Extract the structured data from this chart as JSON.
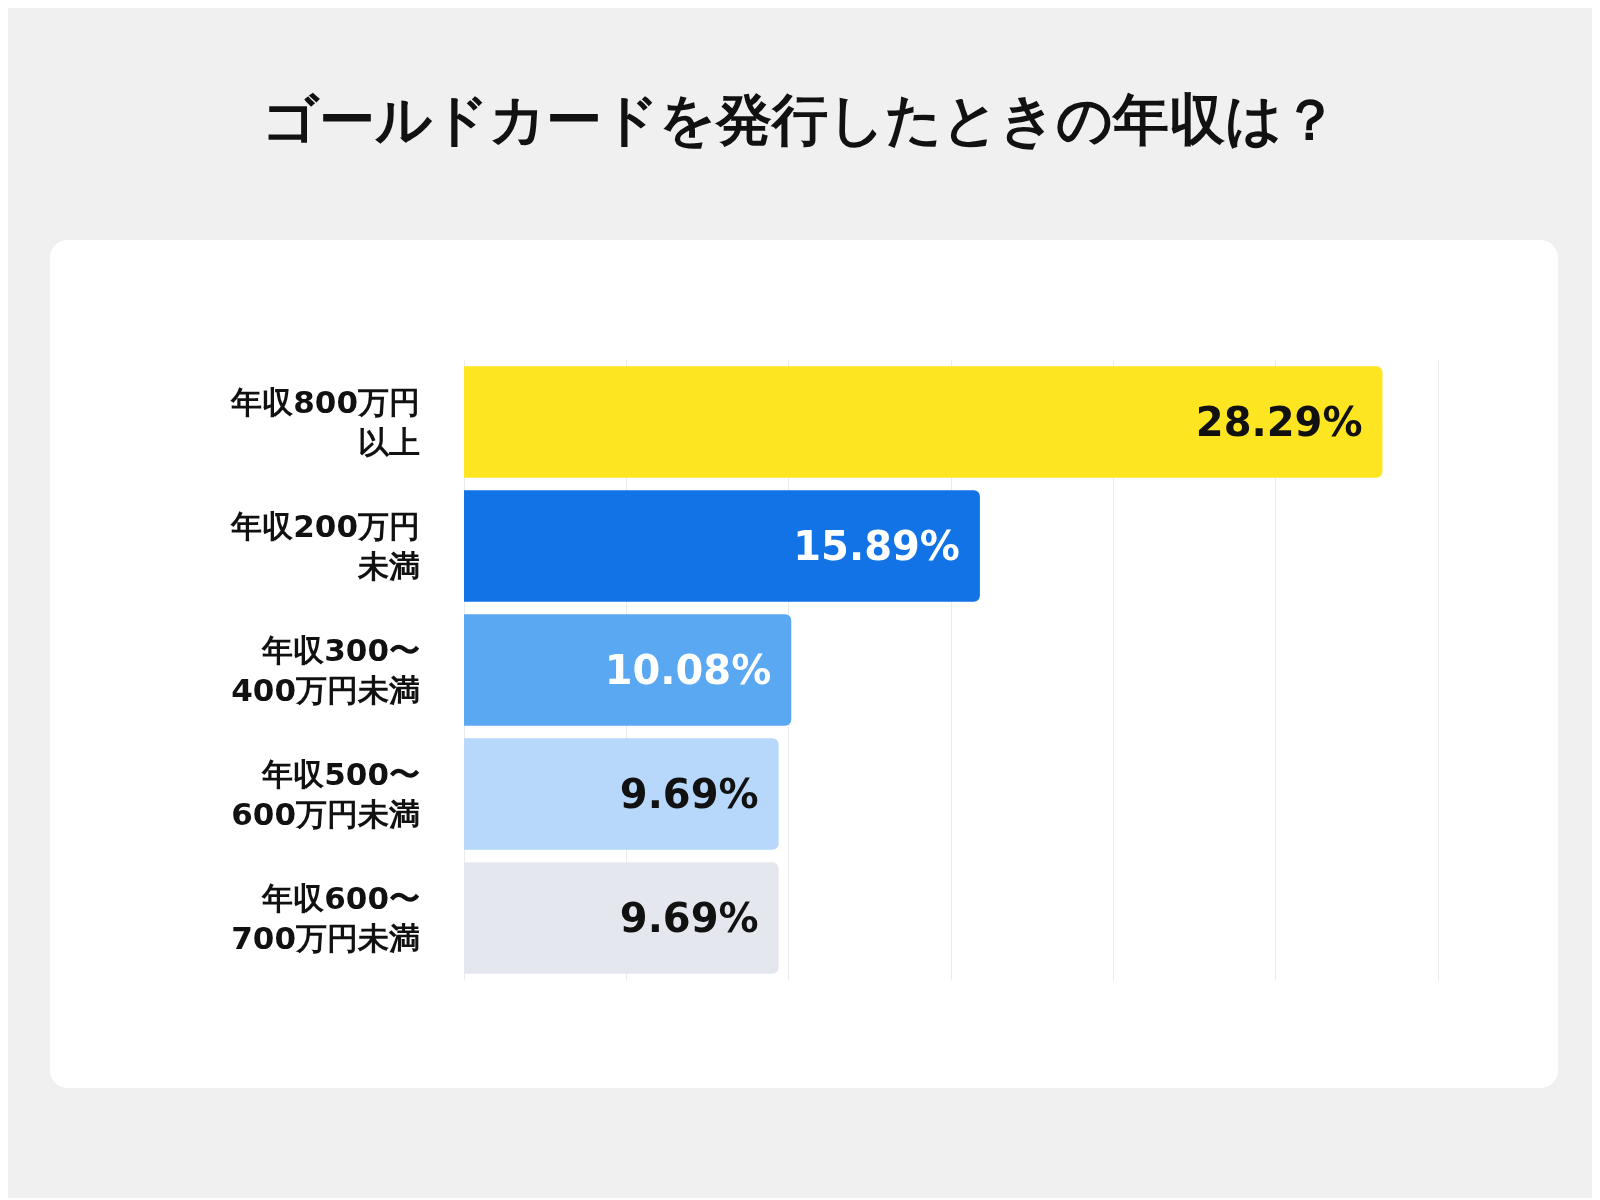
{
  "chart_data": {
    "type": "bar",
    "orientation": "horizontal",
    "title": "ゴールドカードを発行したときの年収は？",
    "categories": [
      "年収800万円以上",
      "年収200万円未満",
      "年収300〜400万円未満",
      "年収500〜600万円未満",
      "年収600〜700万円未満"
    ],
    "values": [
      28.29,
      15.89,
      10.08,
      9.69,
      9.69
    ],
    "colors": [
      "#fee522",
      "#1273e6",
      "#5aa8f2",
      "#b7d8fa",
      "#e4e8ee"
    ],
    "value_labels": [
      "28.29%",
      "15.89%",
      "10.08%",
      "9.69%",
      "9.69%"
    ],
    "grid": "x",
    "tick_labels": "y"
  }
}
